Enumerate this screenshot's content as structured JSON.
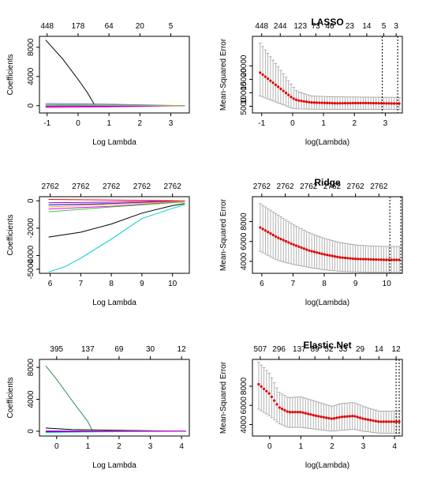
{
  "colors": {
    "lasso_paths": [
      "#000000",
      "#ff00ff",
      "#7b68ee",
      "#0000ff",
      "#00bfff",
      "#ff0000",
      "#9acd32"
    ],
    "ridge_paths": [
      "#000000",
      "#00ced1",
      "#ff00ff",
      "#0000ff",
      "#ff0000",
      "#32cd32",
      "#9400d3",
      "#ffa500"
    ],
    "enet_paths": [
      "#2e8b57",
      "#000000",
      "#00ced1",
      "#9acd32",
      "#0000ff",
      "#ff00ff"
    ],
    "cv_point": "#dd0000",
    "error_bar": "#a0a0a0",
    "vline": "#000000"
  },
  "chart_data": [
    {
      "id": "lasso-path",
      "type": "line",
      "title": "",
      "xlabel": "Log Lambda",
      "ylabel": "Coefficients",
      "xlim": [
        -1.25,
        3.6
      ],
      "ylim": [
        -1000,
        9500
      ],
      "xticks": [
        -1,
        0,
        1,
        2,
        3
      ],
      "yticks": [
        0,
        4000,
        8000
      ],
      "top_labels": [
        "448",
        "178",
        "64",
        "20",
        "5"
      ],
      "top_label_positions": [
        -1,
        0,
        1,
        2,
        3
      ],
      "series": [
        {
          "x": [
            -1.05,
            -0.5,
            0,
            0.3,
            0.55,
            3.45
          ],
          "values": [
            9000,
            6400,
            3600,
            1800,
            0,
            0
          ]
        },
        {
          "x": [
            -1.05,
            0.6,
            3.45
          ],
          "values": [
            -250,
            -200,
            0
          ]
        },
        {
          "x": [
            -1.05,
            1,
            3.45
          ],
          "values": [
            300,
            200,
            0
          ]
        },
        {
          "x": [
            -1.05,
            1.5,
            3.45
          ],
          "values": [
            -100,
            -50,
            0
          ]
        },
        {
          "x": [
            -1.05,
            1.2,
            3.45
          ],
          "values": [
            150,
            80,
            0
          ]
        },
        {
          "x": [
            -1.05,
            0.8,
            3.45
          ],
          "values": [
            -50,
            -30,
            0
          ]
        },
        {
          "x": [
            -1.05,
            2,
            3.45
          ],
          "values": [
            60,
            30,
            0
          ]
        }
      ]
    },
    {
      "id": "lasso-cv",
      "type": "scatter",
      "title": "LASSO",
      "xlabel": "log(Lambda)",
      "ylabel": "Mean-Squared Error",
      "xlim": [
        -1.3,
        3.55
      ],
      "ylim": [
        2500,
        31000
      ],
      "xticks": [
        -1,
        0,
        1,
        2,
        3
      ],
      "yticks": [
        5000,
        10000,
        15000,
        20000
      ],
      "top_labels": [
        "448",
        "244",
        "123",
        "73",
        "46",
        "23",
        "14",
        "5",
        "3"
      ],
      "top_label_positions": [
        -1,
        -0.4,
        0.25,
        0.75,
        1.2,
        1.85,
        2.4,
        2.95,
        3.35
      ],
      "vlines": [
        2.9,
        3.4
      ],
      "series": [
        {
          "x": [
            -1.05,
            0.0,
            0.15,
            0.6,
            1.4,
            2.3,
            3.45
          ],
          "values": [
            17500,
            8000,
            7200,
            6400,
            6100,
            6200,
            6000
          ],
          "lower": [
            8800,
            4200,
            4000,
            3900,
            3800,
            3800,
            3800
          ],
          "upper": [
            28500,
            12500,
            10500,
            8800,
            8500,
            8400,
            8300
          ]
        }
      ]
    },
    {
      "id": "ridge-path",
      "type": "line",
      "title": "",
      "xlabel": "Log Lambda",
      "ylabel": "Coefficients",
      "xlim": [
        5.65,
        10.55
      ],
      "ylim": [
        -5300,
        300
      ],
      "xticks": [
        6,
        7,
        8,
        9,
        10
      ],
      "yticks": [
        -5000,
        -4000,
        -2000,
        0
      ],
      "top_labels": [
        "2762",
        "2762",
        "2762",
        "2762",
        "2762"
      ],
      "top_label_positions": [
        6,
        7,
        8,
        9,
        10
      ],
      "series": [
        {
          "x": [
            5.95,
            7,
            8,
            9,
            10,
            10.4
          ],
          "values": [
            -2650,
            -2300,
            -1700,
            -900,
            -350,
            -200
          ]
        },
        {
          "x": [
            5.95,
            6.5,
            7,
            8,
            9,
            10,
            10.4
          ],
          "values": [
            -5200,
            -4800,
            -4200,
            -2800,
            -1300,
            -550,
            -300
          ]
        },
        {
          "x": [
            5.95,
            8,
            10.4
          ],
          "values": [
            -600,
            -400,
            -50
          ]
        },
        {
          "x": [
            5.95,
            8,
            10.4
          ],
          "values": [
            -300,
            -200,
            -20
          ]
        },
        {
          "x": [
            5.95,
            8,
            10.4
          ],
          "values": [
            100,
            50,
            0
          ]
        },
        {
          "x": [
            5.95,
            8,
            10.4
          ],
          "values": [
            -800,
            -450,
            -80
          ]
        },
        {
          "x": [
            5.95,
            8,
            10.4
          ],
          "values": [
            -150,
            -100,
            -10
          ]
        },
        {
          "x": [
            5.95,
            8,
            10.4
          ],
          "values": [
            -450,
            -250,
            -30
          ]
        }
      ]
    },
    {
      "id": "ridge-cv",
      "type": "scatter",
      "title": "Ridge",
      "xlabel": "log(Lambda)",
      "ylabel": "Mean-Squared Error",
      "xlim": [
        5.7,
        10.5
      ],
      "ylim": [
        2800,
        10500
      ],
      "xticks": [
        6,
        7,
        8,
        9,
        10
      ],
      "yticks": [
        4000,
        6000,
        8000
      ],
      "top_labels": [
        "2762",
        "2762",
        "2762",
        "2762",
        "2762",
        "2762"
      ],
      "top_label_positions": [
        6,
        6.75,
        7.5,
        8.25,
        9,
        9.75
      ],
      "vlines": [
        10.1,
        10.45
      ],
      "series": [
        {
          "x": [
            5.95,
            6.5,
            7,
            7.5,
            8,
            8.5,
            9,
            9.5,
            10,
            10.4
          ],
          "values": [
            7400,
            6400,
            5700,
            5100,
            4700,
            4400,
            4250,
            4200,
            4150,
            4150
          ],
          "lower": [
            5000,
            4100,
            3700,
            3400,
            3150,
            3000,
            2950,
            2900,
            2900,
            2900
          ],
          "upper": [
            9800,
            8700,
            7700,
            6900,
            6300,
            5900,
            5650,
            5550,
            5500,
            5500
          ]
        }
      ]
    },
    {
      "id": "enet-path",
      "type": "line",
      "title": "",
      "xlabel": "Log Lambda",
      "ylabel": "Coefficients",
      "xlim": [
        -0.55,
        4.25
      ],
      "ylim": [
        -600,
        9000
      ],
      "xticks": [
        0,
        1,
        2,
        3,
        4
      ],
      "yticks": [
        0,
        4000,
        8000
      ],
      "top_labels": [
        "395",
        "137",
        "69",
        "30",
        "12"
      ],
      "top_label_positions": [
        0,
        1,
        2,
        3,
        4
      ],
      "series": [
        {
          "x": [
            -0.35,
            0,
            0.5,
            1,
            1.15,
            4.15
          ],
          "values": [
            8200,
            6500,
            3800,
            1200,
            0,
            0
          ]
        },
        {
          "x": [
            -0.35,
            0.5,
            4.15
          ],
          "values": [
            400,
            200,
            0
          ]
        },
        {
          "x": [
            -0.35,
            1,
            4.15
          ],
          "values": [
            -150,
            -80,
            0
          ]
        },
        {
          "x": [
            -0.35,
            2,
            4.15
          ],
          "values": [
            80,
            40,
            0
          ]
        },
        {
          "x": [
            -0.35,
            1.5,
            4.15
          ],
          "values": [
            -60,
            -30,
            0
          ]
        },
        {
          "x": [
            -0.35,
            0.8,
            4.15
          ],
          "values": [
            30,
            15,
            0
          ]
        }
      ]
    },
    {
      "id": "enet-cv",
      "type": "scatter",
      "title": "Elastic.Net",
      "xlabel": "log(Lambda)",
      "ylabel": "Mean-Squared Error",
      "xlim": [
        -0.55,
        4.25
      ],
      "ylim": [
        2800,
        10800
      ],
      "xticks": [
        0,
        1,
        2,
        3,
        4
      ],
      "yticks": [
        4000,
        6000,
        8000
      ],
      "top_labels": [
        "507",
        "296",
        "137",
        "89",
        "52",
        "33",
        "29",
        "14",
        "12"
      ],
      "top_label_positions": [
        -0.3,
        0.3,
        0.95,
        1.45,
        1.9,
        2.35,
        2.9,
        3.5,
        4.05
      ],
      "vlines": [
        4.05,
        4.15
      ],
      "series": [
        {
          "x": [
            -0.35,
            0,
            0.3,
            0.6,
            1,
            1.5,
            2,
            2.3,
            2.7,
            3,
            3.5,
            4.15
          ],
          "values": [
            8200,
            7200,
            5800,
            5300,
            5300,
            4900,
            4600,
            4800,
            4900,
            4600,
            4300,
            4300
          ],
          "lower": [
            5600,
            4900,
            4100,
            3700,
            3700,
            3500,
            3300,
            3400,
            3500,
            3300,
            3100,
            3100
          ],
          "upper": [
            10500,
            9300,
            7400,
            6800,
            6900,
            6400,
            5900,
            6200,
            6300,
            5900,
            5400,
            5400
          ]
        }
      ]
    }
  ]
}
